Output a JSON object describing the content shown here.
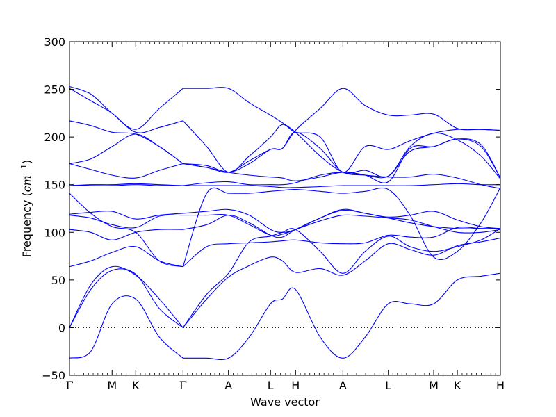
{
  "chart_data": {
    "type": "line",
    "xlabel": "Wave vector",
    "ylabel": "Frequency ($cm^{-1}$)",
    "ylabel_parts": {
      "text": "Frequency (",
      "unit": "cm",
      "exp": "−1",
      "close": ")"
    },
    "ylim": [
      -50,
      300
    ],
    "yticks": [
      -50,
      0,
      50,
      100,
      150,
      200,
      250,
      300
    ],
    "ytick_labels": [
      "−50",
      "0",
      "50",
      "100",
      "150",
      "200",
      "250",
      "300"
    ],
    "zero_line": "dotted",
    "grid": false,
    "legend": "none",
    "line_color": "#0000ff",
    "xlim": [
      0,
      9.11
    ],
    "high_symmetry_points": [
      {
        "label": "Γ",
        "x": 0.0
      },
      {
        "label": "M",
        "x": 0.9
      },
      {
        "label": "K",
        "x": 1.4
      },
      {
        "label": "Γ",
        "x": 2.4
      },
      {
        "label": "A",
        "x": 3.36
      },
      {
        "label": "L",
        "x": 4.25
      },
      {
        "label": "H",
        "x": 4.78
      },
      {
        "label": "A",
        "x": 5.78
      },
      {
        "label": "L",
        "x": 6.74
      },
      {
        "label": "M",
        "x": 7.7
      },
      {
        "label": "K",
        "x": 8.2
      },
      {
        "label": "H",
        "x": 9.11
      }
    ],
    "series": [
      {
        "x": [
          0,
          0.45,
          0.9,
          1.4,
          1.9,
          2.4,
          2.4,
          2.9,
          3.36,
          3.8,
          4.25,
          4.5,
          4.78,
          5.3,
          5.78,
          6.25,
          6.74,
          7.2,
          7.7,
          8.2,
          8.7,
          9.11
        ],
        "y": [
          -32,
          -25,
          25,
          30,
          -10,
          -32,
          -32,
          -32,
          -32,
          -10,
          25,
          30,
          40,
          -10,
          -32,
          -10,
          25,
          25,
          25,
          50,
          54,
          57
        ]
      },
      {
        "x": [
          0,
          0.45,
          0.9,
          1.4,
          1.9,
          2.4,
          2.4,
          2.9,
          3.36,
          3.8,
          4.25,
          4.5,
          4.78,
          5.3,
          5.78,
          6.25,
          6.74,
          7.2,
          7.7,
          8.2,
          8.7,
          9.11
        ],
        "y": [
          0,
          40,
          60,
          56,
          20,
          0,
          0,
          30,
          53,
          65,
          74,
          70,
          58,
          62,
          55,
          70,
          88,
          82,
          76,
          86,
          90,
          94
        ]
      },
      {
        "x": [
          0,
          0.45,
          0.9,
          1.4,
          1.9,
          2.4,
          2.4,
          2.9,
          3.36,
          3.8,
          4.25,
          4.5,
          4.78,
          5.3,
          5.78,
          6.25,
          6.74,
          7.2,
          7.7,
          8.2,
          8.7,
          9.11
        ],
        "y": [
          0,
          45,
          64,
          55,
          30,
          0,
          0,
          35,
          57,
          90,
          96,
          100,
          103,
          80,
          57,
          80,
          96,
          85,
          80,
          85,
          92,
          104
        ]
      },
      {
        "x": [
          0,
          0.45,
          0.9,
          1.4,
          1.9,
          2.4,
          2.4,
          2.9,
          3.36,
          3.8,
          4.25,
          4.5,
          4.78,
          5.3,
          5.78,
          6.25,
          6.74,
          7.2,
          7.7,
          8.2,
          8.7,
          9.11
        ],
        "y": [
          64,
          70,
          79,
          85,
          70,
          64,
          64,
          85,
          88,
          89,
          90,
          91,
          92,
          89,
          88,
          89,
          97,
          95,
          95,
          105,
          104,
          104
        ]
      },
      {
        "x": [
          0,
          0.45,
          0.9,
          1.4,
          1.9,
          2.4,
          2.4,
          2.9,
          3.36,
          3.8,
          4.25,
          4.5,
          4.78,
          5.3,
          5.78,
          6.25,
          6.74,
          7.2,
          7.7,
          8.2,
          8.7,
          9.11
        ],
        "y": [
          103,
          100,
          92,
          100,
          103,
          103,
          103,
          108,
          118,
          110,
          97,
          95,
          103,
          115,
          123,
          120,
          115,
          110,
          106,
          104,
          104,
          104
        ]
      },
      {
        "x": [
          0,
          0.45,
          0.9,
          1.4,
          1.9,
          2.4,
          2.4,
          2.9,
          3.36,
          3.8,
          4.25,
          4.5,
          4.78,
          5.3,
          5.78,
          6.25,
          6.74,
          7.2,
          7.7,
          8.2,
          8.7,
          9.11
        ],
        "y": [
          118,
          115,
          108,
          105,
          117,
          118,
          118,
          118,
          118,
          108,
          97,
          98,
          103,
          112,
          118,
          117,
          115,
          113,
          106,
          100,
          100,
          103
        ]
      },
      {
        "x": [
          0,
          0.45,
          0.9,
          1.4,
          1.9,
          2.4,
          2.4,
          2.9,
          3.36,
          3.8,
          4.25,
          4.5,
          4.78,
          5.3,
          5.78,
          6.25,
          6.74,
          7.2,
          7.7,
          8.2,
          8.7,
          9.11
        ],
        "y": [
          119,
          121,
          122,
          114,
          118,
          120,
          120,
          122,
          124,
          118,
          103,
          100,
          103,
          115,
          124,
          120,
          116,
          118,
          122,
          113,
          106,
          104
        ]
      },
      {
        "x": [
          0,
          0.45,
          0.9,
          1.4,
          1.9,
          2.4,
          2.4,
          2.9,
          3.36,
          3.8,
          4.25,
          4.5,
          4.78,
          5.3,
          5.78,
          6.25,
          6.74,
          7.2,
          7.7,
          8.2,
          8.7,
          9.11
        ],
        "y": [
          141,
          120,
          106,
          100,
          70,
          64,
          64,
          141,
          141,
          141,
          143,
          144,
          145,
          143,
          141,
          143,
          145,
          118,
          74,
          80,
          110,
          147
        ]
      },
      {
        "x": [
          0,
          0.45,
          0.9,
          1.4,
          1.9,
          2.4,
          2.4,
          2.9,
          3.36,
          3.8,
          4.25,
          4.5,
          4.78,
          5.3,
          5.78,
          6.25,
          6.74,
          7.2,
          7.7,
          8.2,
          8.7,
          9.11
        ],
        "y": [
          149,
          149,
          149,
          150,
          149,
          149,
          149,
          149,
          149,
          149,
          148,
          147,
          147,
          148,
          149,
          149,
          149,
          149,
          150,
          151,
          150,
          150
        ]
      },
      {
        "x": [
          0,
          0.45,
          0.9,
          1.4,
          1.9,
          2.4,
          2.4,
          2.9,
          3.36,
          3.8,
          4.25,
          4.5,
          4.78,
          5.3,
          5.78,
          6.25,
          6.74,
          7.2,
          7.7,
          8.2,
          8.7,
          9.11
        ],
        "y": [
          149,
          150,
          150,
          151,
          150,
          149,
          149,
          152,
          153,
          150,
          150,
          150,
          152,
          160,
          163,
          160,
          158,
          158,
          161,
          157,
          150,
          146
        ]
      },
      {
        "x": [
          0,
          0.45,
          0.9,
          1.4,
          1.9,
          2.4,
          2.4,
          2.9,
          3.36,
          3.8,
          4.25,
          4.5,
          4.78,
          5.3,
          5.78,
          6.25,
          6.74,
          7.2,
          7.7,
          8.2,
          8.7,
          9.11
        ],
        "y": [
          172,
          166,
          160,
          157,
          165,
          172,
          172,
          168,
          163,
          160,
          158,
          157,
          154,
          158,
          163,
          160,
          153,
          188,
          190,
          198,
          190,
          157
        ]
      },
      {
        "x": [
          0,
          0.45,
          0.9,
          1.4,
          1.9,
          2.4,
          2.4,
          2.9,
          3.36,
          3.8,
          4.25,
          4.5,
          4.78,
          5.3,
          5.78,
          6.25,
          6.74,
          7.2,
          7.7,
          8.2,
          8.7,
          9.11
        ],
        "y": [
          172,
          177,
          190,
          203,
          190,
          172,
          172,
          170,
          163,
          172,
          187,
          188,
          205,
          188,
          163,
          165,
          159,
          190,
          204,
          197,
          180,
          156
        ]
      },
      {
        "x": [
          0,
          0.45,
          0.9,
          1.4,
          1.9,
          2.4,
          2.4,
          2.9,
          3.36,
          3.8,
          4.25,
          4.5,
          4.78,
          5.3,
          5.78,
          6.25,
          6.74,
          7.2,
          7.7,
          8.2,
          8.7,
          9.11
        ],
        "y": [
          217,
          212,
          205,
          203,
          190,
          172,
          172,
          168,
          163,
          175,
          187,
          188,
          207,
          230,
          251,
          233,
          223,
          223,
          224,
          209,
          208,
          207
        ]
      },
      {
        "x": [
          0,
          0.45,
          0.9,
          1.4,
          1.9,
          2.4,
          2.4,
          2.9,
          3.36,
          3.8,
          4.25,
          4.5,
          4.78,
          5.3,
          5.78,
          6.25,
          6.74,
          7.2,
          7.7,
          8.2,
          8.7,
          9.11
        ],
        "y": [
          251,
          238,
          225,
          205,
          210,
          217,
          217,
          190,
          163,
          180,
          200,
          213,
          205,
          200,
          163,
          190,
          187,
          196,
          204,
          208,
          208,
          207
        ]
      },
      {
        "x": [
          0,
          0.45,
          0.9,
          1.4,
          1.9,
          2.4,
          2.4,
          2.9,
          3.36,
          3.8,
          4.25,
          4.5,
          4.78,
          5.3,
          5.78,
          6.25,
          6.74,
          7.2,
          7.7,
          8.2,
          8.7,
          9.11
        ],
        "y": [
          253,
          245,
          225,
          208,
          230,
          251,
          251,
          251,
          251,
          236,
          223,
          215,
          205,
          180,
          163,
          160,
          159,
          185,
          190,
          198,
          192,
          157
        ]
      }
    ]
  }
}
